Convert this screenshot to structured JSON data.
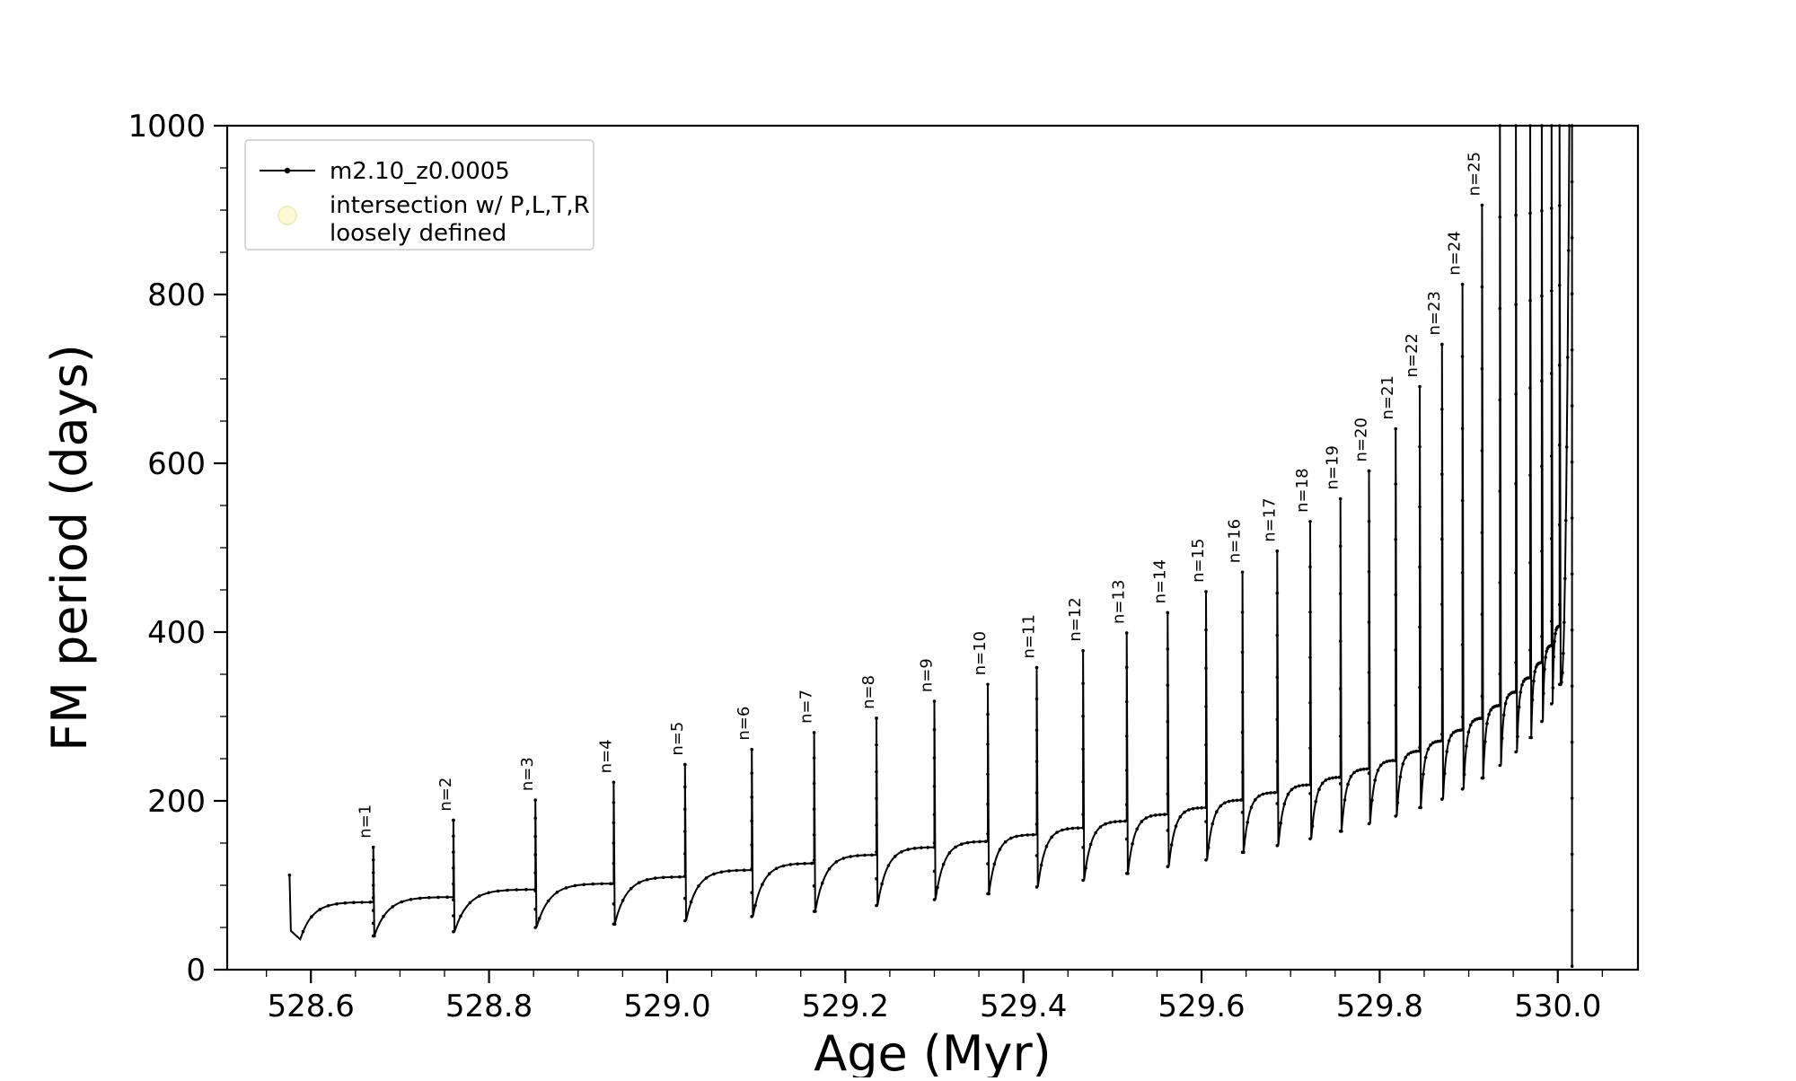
{
  "figure": {
    "background": "#ffffff"
  },
  "chart_data": {
    "type": "line",
    "title": "",
    "xlabel": "Age (Myr)",
    "ylabel": "FM period (days)",
    "xlim": [
      528.506,
      530.09
    ],
    "ylim": [
      0,
      1000
    ],
    "x_ticks": [
      528.6,
      528.8,
      529.0,
      529.2,
      529.4,
      529.6,
      529.8,
      530.0
    ],
    "x_tick_labels": [
      "528.6",
      "528.8",
      "529.0",
      "529.2",
      "529.4",
      "529.6",
      "529.8",
      "530.0"
    ],
    "y_ticks": [
      0,
      200,
      400,
      600,
      800,
      1000
    ],
    "y_tick_labels": [
      "0",
      "200",
      "400",
      "600",
      "800",
      "1000"
    ],
    "x_minor_step": 0.05,
    "y_minor_step": 50,
    "grid": false,
    "legend_position": "upper-left",
    "series_color": "#000000",
    "legend": [
      {
        "label": "m2.10_z0.0005",
        "marker": "line-with-dot",
        "color": "#000000"
      },
      {
        "label_lines": [
          "intersection w/ P,L,T,R",
          "loosely defined"
        ],
        "marker": "circle",
        "color": "#fafad2",
        "edge_color": "#e8e8b0"
      }
    ],
    "pulse_label_prefix": "n=",
    "pulse_keys": [
      "n",
      "age_myr",
      "peak_days",
      "pre_spike_level_days",
      "post_spike_dip_days"
    ],
    "pulses": [
      [
        1,
        528.67,
        145,
        80,
        40
      ],
      [
        2,
        528.76,
        177,
        86,
        45
      ],
      [
        3,
        528.852,
        201,
        95,
        50
      ],
      [
        4,
        528.94,
        222,
        102,
        54
      ],
      [
        5,
        529.02,
        243,
        110,
        58
      ],
      [
        6,
        529.095,
        261,
        118,
        63
      ],
      [
        7,
        529.165,
        281,
        126,
        69
      ],
      [
        8,
        529.235,
        298,
        136,
        76
      ],
      [
        9,
        529.3,
        318,
        145,
        83
      ],
      [
        10,
        529.36,
        338,
        152,
        90
      ],
      [
        11,
        529.415,
        358,
        160,
        98
      ],
      [
        12,
        529.467,
        378,
        168,
        106
      ],
      [
        13,
        529.516,
        399,
        176,
        114
      ],
      [
        14,
        529.562,
        423,
        184,
        122
      ],
      [
        15,
        529.605,
        448,
        192,
        130
      ],
      [
        16,
        529.646,
        471,
        201,
        139
      ],
      [
        17,
        529.685,
        496,
        210,
        147
      ],
      [
        18,
        529.722,
        531,
        219,
        155
      ],
      [
        19,
        529.756,
        558,
        228,
        164
      ],
      [
        20,
        529.788,
        591,
        238,
        173
      ],
      [
        21,
        529.818,
        641,
        248,
        182
      ],
      [
        22,
        529.845,
        691,
        259,
        192
      ],
      [
        23,
        529.87,
        741,
        271,
        202
      ],
      [
        24,
        529.893,
        812,
        284,
        214
      ],
      [
        25,
        529.915,
        906,
        298,
        227
      ],
      [
        null,
        529.935,
        1060,
        313,
        242
      ],
      [
        null,
        529.953,
        1120,
        329,
        258
      ],
      [
        null,
        529.969,
        1180,
        346,
        275
      ],
      [
        null,
        529.982,
        1240,
        364,
        294
      ],
      [
        null,
        529.993,
        1300,
        384,
        315
      ],
      [
        null,
        530.002,
        1360,
        407,
        338
      ]
    ],
    "start": {
      "age": 528.576,
      "spike_top": 112,
      "spike_bottom": 46,
      "dip_age": 528.588,
      "dip": 36
    },
    "final": {
      "rise_end_age": 530.013,
      "drop_age": 530.016,
      "drop_bottom": 4
    }
  }
}
